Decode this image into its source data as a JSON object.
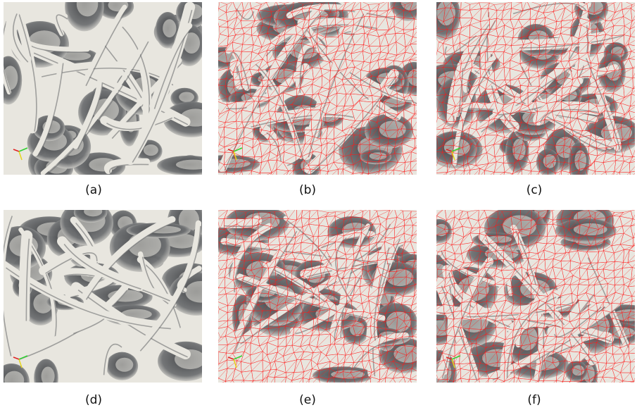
{
  "figure": {
    "panels": [
      {
        "id": "a",
        "caption": "(a)",
        "wireframe": false,
        "seed": 3
      },
      {
        "id": "b",
        "caption": "(b)",
        "wireframe": true,
        "seed": 7
      },
      {
        "id": "c",
        "caption": "(c)",
        "wireframe": true,
        "seed": 11
      },
      {
        "id": "d",
        "caption": "(d)",
        "wireframe": false,
        "seed": 17
      },
      {
        "id": "e",
        "caption": "(e)",
        "wireframe": true,
        "seed": 23
      },
      {
        "id": "f",
        "caption": "(f)",
        "wireframe": true,
        "seed": 29
      }
    ],
    "colors": {
      "surface": "#e8e6df",
      "shadow": "#6e7072",
      "deep": "#3d3f42",
      "mesh": "#ff1a1a"
    }
  }
}
